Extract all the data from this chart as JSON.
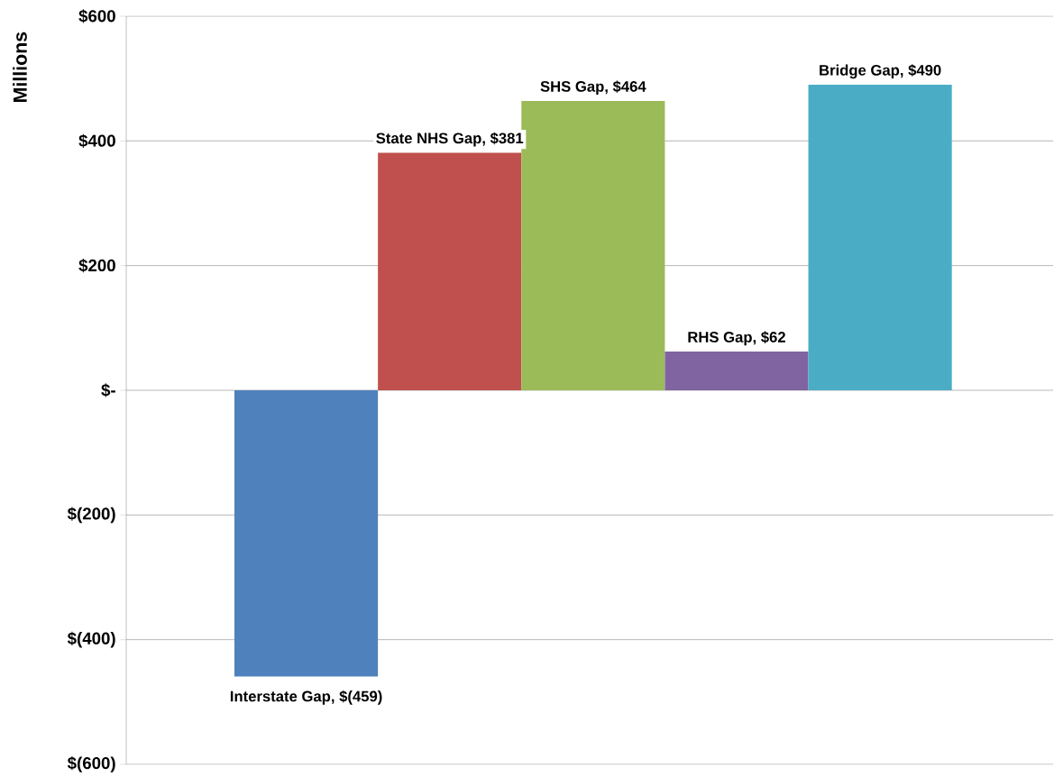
{
  "chart_data": {
    "type": "bar",
    "ylabel": "Millions",
    "categories": [
      null,
      null,
      null,
      null,
      null
    ],
    "values": [
      -459,
      381,
      464,
      62,
      490
    ],
    "value_labels": [
      "Interstate Gap,  $(459)",
      "State NHS Gap,  $381",
      "SHS Gap,  $464",
      "RHS Gap,  $62",
      "Bridge Gap,  $490"
    ],
    "colors": [
      "#4f81bd",
      "#c0504d",
      "#9bbb59",
      "#8064a2",
      "#4bacc6"
    ],
    "ylim": [
      -600,
      600
    ],
    "yticks": [
      {
        "value": 600,
        "label": "$600"
      },
      {
        "value": 400,
        "label": "$400"
      },
      {
        "value": 200,
        "label": "$200"
      },
      {
        "value": 0,
        "label": "$-"
      },
      {
        "value": -200,
        "label": "$(200)"
      },
      {
        "value": -400,
        "label": "$(400)"
      },
      {
        "value": -600,
        "label": "$(600)"
      }
    ],
    "grid": "y"
  }
}
